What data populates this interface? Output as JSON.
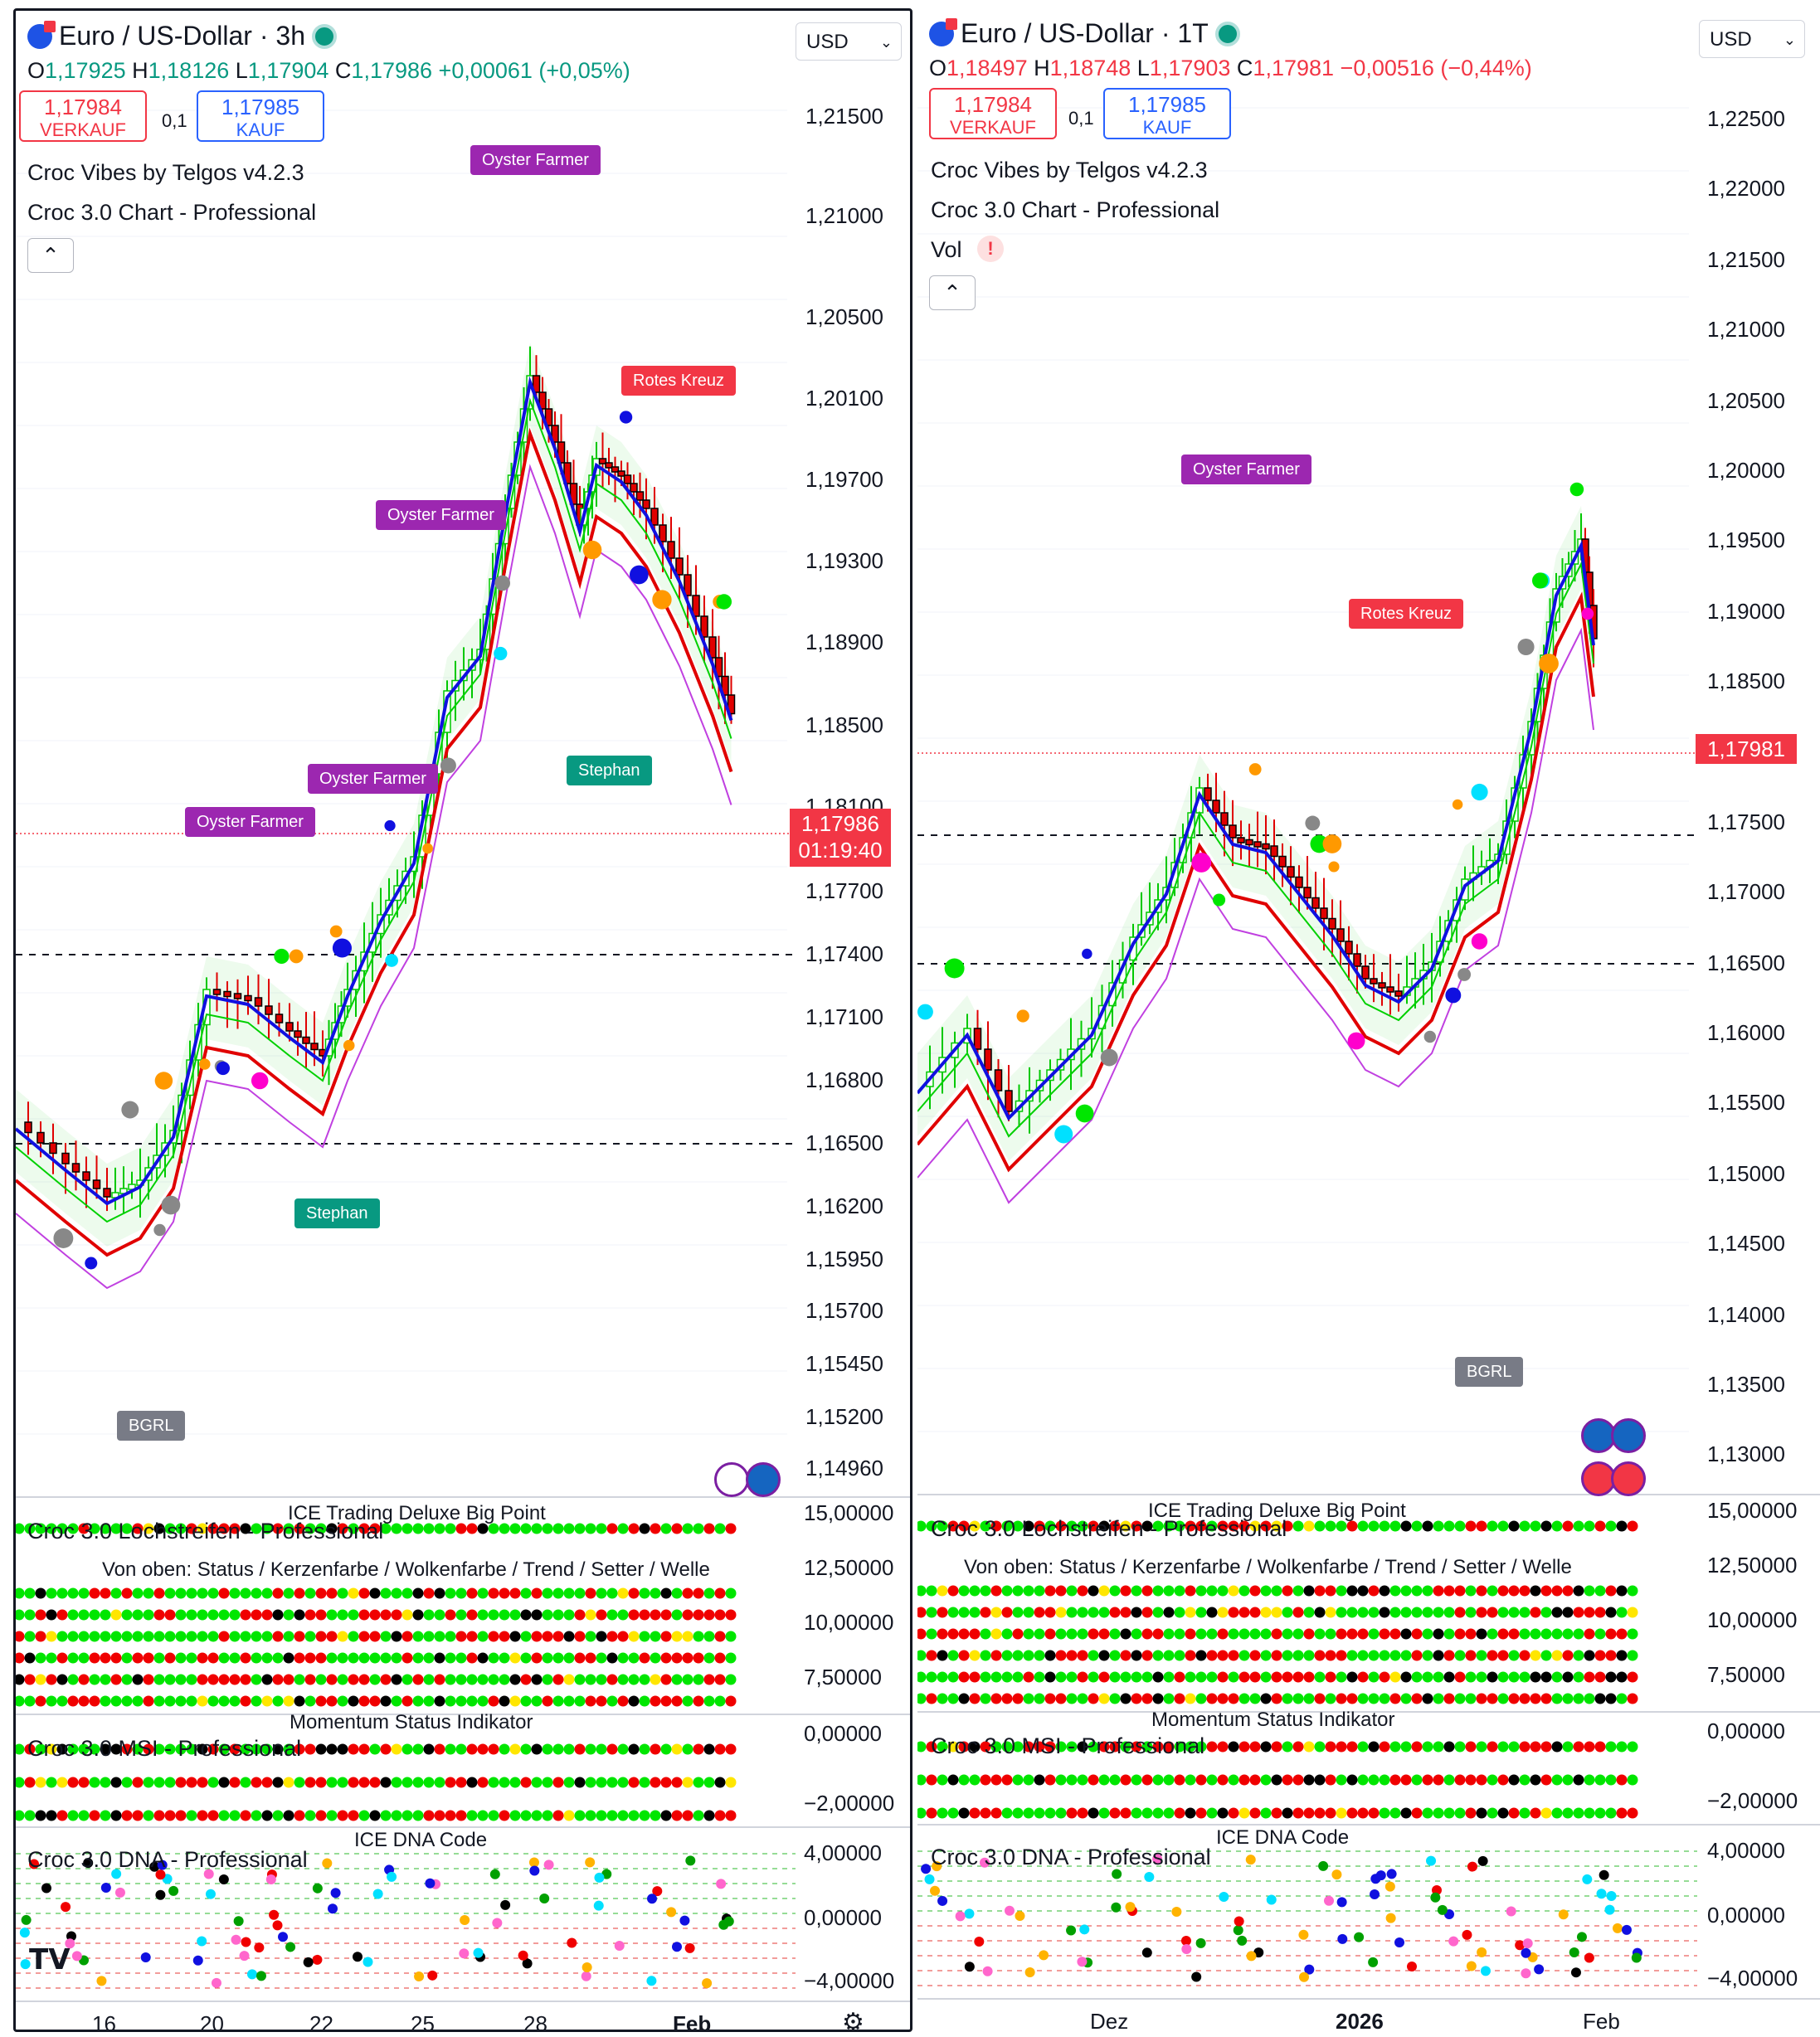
{
  "left": {
    "title": "Euro / US-Dollar · 3h",
    "ohlc": {
      "o_label": "O",
      "o": "1,17925",
      "h_label": "H",
      "h": "1,18126",
      "l_label": "L",
      "l": "1,17904",
      "c_label": "C",
      "c": "1,17986",
      "change": "+0,00061 (+0,05%)"
    },
    "sell": {
      "price": "1,17984",
      "label": "VERKAUF"
    },
    "buy": {
      "price": "1,17985",
      "label": "KAUF"
    },
    "spread": "0,1",
    "currency": "USD",
    "indicators": [
      "Croc Vibes by Telgos v4.2.3",
      "Croc 3.0 Chart - Professional"
    ],
    "collapse_glyph": "⌃",
    "price_axis": [
      "1,21500",
      "1,21000",
      "1,20500",
      "1,20100",
      "1,19700",
      "1,19300",
      "1,18900",
      "1,18500",
      "1,18100",
      "1,17700",
      "1,17400",
      "1,17100",
      "1,16800",
      "1,16500",
      "1,16200",
      "1,15950",
      "1,15700",
      "1,15450",
      "1,15200",
      "1,14960"
    ],
    "last_price": "1,17986",
    "countdown": "01:19:40",
    "tags": [
      {
        "text": "Oyster Farmer",
        "kind": "purple"
      },
      {
        "text": "Rotes Kreuz",
        "kind": "red"
      },
      {
        "text": "Oyster Farmer",
        "kind": "purple"
      },
      {
        "text": "Oyster Farmer",
        "kind": "purple"
      },
      {
        "text": "Oyster Farmer",
        "kind": "purple"
      },
      {
        "text": "Stephan",
        "kind": "green"
      },
      {
        "text": "Stephan",
        "kind": "green"
      },
      {
        "text": "BGRL",
        "kind": "gray"
      }
    ],
    "sub1": {
      "title": "Croc 3.0 Lochstreifen - Professional",
      "center": "ICE Trading Deluxe Big Point",
      "row_caption": "Von oben: Status / Kerzenfarbe / Wolkenfarbe / Trend / Setter / Welle",
      "axis": [
        "15,00000",
        "12,50000",
        "10,00000",
        "7,50000"
      ]
    },
    "sub2": {
      "title": "Croc 3.0 MSI - Professional",
      "center": "Momentum Status Indikator",
      "axis": [
        "0,00000",
        "−2,00000"
      ]
    },
    "sub3": {
      "title": "Croc 3.0 DNA - Professional",
      "center": "ICE DNA Code",
      "axis": [
        "4,00000",
        "0,00000",
        "−4,00000"
      ]
    },
    "time_axis": [
      "16",
      "20",
      "22",
      "25",
      "28",
      "Feb"
    ]
  },
  "right": {
    "title": "Euro / US-Dollar · 1T",
    "ohlc": {
      "o_label": "O",
      "o": "1,18497",
      "h_label": "H",
      "h": "1,18748",
      "l_label": "L",
      "l": "1,17903",
      "c_label": "C",
      "c": "1,17981",
      "change": "−0,00516 (−0,44%)"
    },
    "sell": {
      "price": "1,17984",
      "label": "VERKAUF"
    },
    "buy": {
      "price": "1,17985",
      "label": "KAUF"
    },
    "spread": "0,1",
    "currency": "USD",
    "indicators": [
      "Croc Vibes by Telgos v4.2.3",
      "Croc 3.0 Chart - Professional",
      "Vol"
    ],
    "vol_warning": "!",
    "collapse_glyph": "⌃",
    "price_axis": [
      "1,22500",
      "1,22000",
      "1,21500",
      "1,21000",
      "1,20500",
      "1,20000",
      "1,19500",
      "1,19000",
      "1,18500",
      "1,17500",
      "1,17000",
      "1,16500",
      "1,16000",
      "1,15500",
      "1,15000",
      "1,14500",
      "1,14000",
      "1,13500",
      "1,13000"
    ],
    "last_price": "1,17981",
    "tags": [
      {
        "text": "Oyster Farmer",
        "kind": "purple"
      },
      {
        "text": "Rotes Kreuz",
        "kind": "red"
      },
      {
        "text": "BGRL",
        "kind": "gray"
      }
    ],
    "sub1": {
      "title": "Croc 3.0 Lochstreifen - Professional",
      "center": "ICE Trading Deluxe Big Point",
      "row_caption": "Von oben: Status / Kerzenfarbe / Wolkenfarbe / Trend / Setter / Welle",
      "axis": [
        "15,00000",
        "12,50000",
        "10,00000",
        "7,50000"
      ]
    },
    "sub2": {
      "title": "Croc 3.0 MSI - Professional",
      "center": "Momentum Status Indikator",
      "axis": [
        "0,00000",
        "−2,00000"
      ]
    },
    "sub3": {
      "title": "Croc 3.0 DNA - Professional",
      "center": "ICE DNA Code",
      "axis": [
        "4,00000",
        "0,00000",
        "−4,00000"
      ]
    },
    "time_axis": [
      "Dez",
      "2026",
      "Feb"
    ]
  },
  "colors": {
    "up": "#00e600",
    "down": "#f23645",
    "blue": "#1010e0",
    "purple": "#9c27b0",
    "teal": "#089981",
    "gray": "#787b86"
  }
}
